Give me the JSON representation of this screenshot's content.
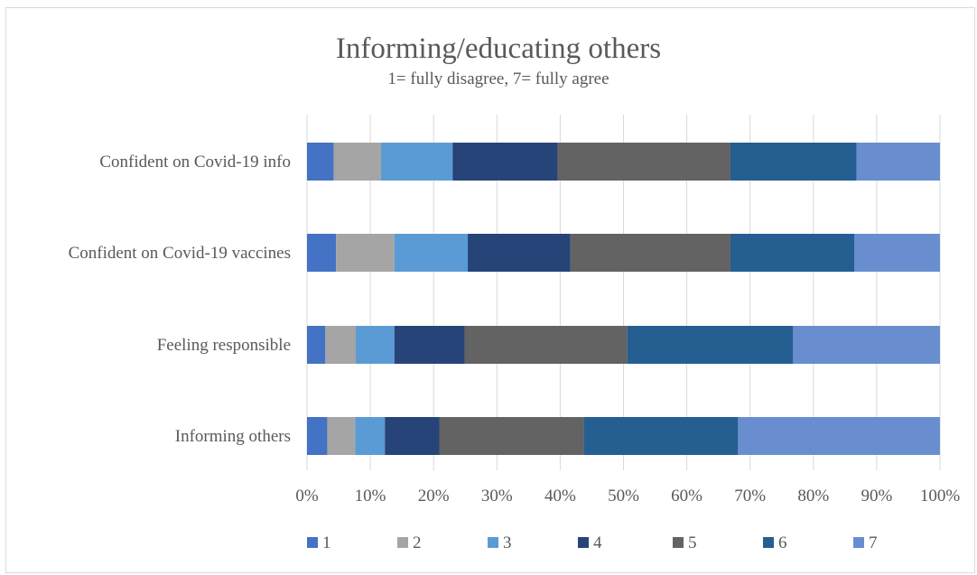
{
  "chart_data": {
    "type": "bar",
    "orientation": "horizontal",
    "stacked": "percent",
    "title": "Informing/educating others",
    "subtitle": "1= fully disagree, 7= fully agree",
    "categories": [
      "Confident on Covid-19 info",
      "Confident on Covid-19 vaccines",
      "Feeling responsible",
      "Informing others"
    ],
    "series": [
      {
        "name": "1",
        "color": "#4472c4",
        "values": [
          4.2,
          4.6,
          2.9,
          3.2
        ]
      },
      {
        "name": "2",
        "color": "#a5a5a5",
        "values": [
          7.5,
          9.2,
          4.8,
          4.4
        ]
      },
      {
        "name": "3",
        "color": "#5b9bd5",
        "values": [
          11.3,
          11.6,
          6.1,
          4.7
        ]
      },
      {
        "name": "4",
        "color": "#264478",
        "values": [
          16.6,
          16.2,
          11.1,
          8.6
        ]
      },
      {
        "name": "5",
        "color": "#636363",
        "values": [
          27.3,
          25.3,
          25.7,
          22.8
        ]
      },
      {
        "name": "6",
        "color": "#255e91",
        "values": [
          19.9,
          19.6,
          26.2,
          24.4
        ]
      },
      {
        "name": "7",
        "color": "#698ed0",
        "values": [
          13.2,
          13.5,
          23.2,
          31.9
        ]
      }
    ],
    "xticks": [
      "0%",
      "10%",
      "20%",
      "30%",
      "40%",
      "50%",
      "60%",
      "70%",
      "80%",
      "90%",
      "100%"
    ],
    "xlim": [
      0,
      100
    ],
    "grid": "vertical",
    "legend_position": "bottom"
  }
}
